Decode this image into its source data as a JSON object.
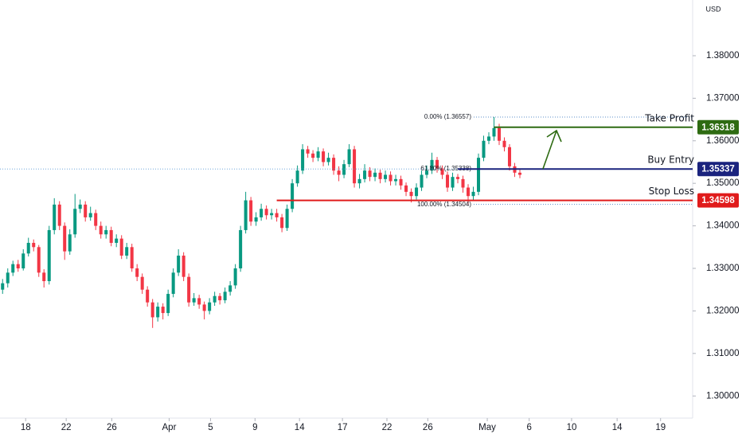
{
  "chart_data": {
    "type": "candlestick",
    "currency": "USD",
    "up_color": "#089981",
    "down_color": "#f23645",
    "grid": false,
    "ylim": [
      1.2948,
      1.3931
    ],
    "yticks": [
      {
        "value": 1.38,
        "label": "1.38000"
      },
      {
        "value": 1.37,
        "label": "1.37000"
      },
      {
        "value": 1.36,
        "label": "1.36000"
      },
      {
        "value": 1.35,
        "label": "1.35000"
      },
      {
        "value": 1.34,
        "label": "1.34000"
      },
      {
        "value": 1.33,
        "label": "1.33000"
      },
      {
        "value": 1.32,
        "label": "1.32000"
      },
      {
        "value": 1.31,
        "label": "1.31000"
      },
      {
        "value": 1.3,
        "label": "1.30000"
      }
    ],
    "xlim": [
      -0.5,
      133.4
    ],
    "xticks": [
      {
        "value": 4.46,
        "label": "18"
      },
      {
        "value": 12.3,
        "label": "22"
      },
      {
        "value": 21.1,
        "label": "26"
      },
      {
        "value": 32.2,
        "label": "Apr"
      },
      {
        "value": 40.2,
        "label": "5"
      },
      {
        "value": 48.8,
        "label": "9"
      },
      {
        "value": 57.4,
        "label": "14"
      },
      {
        "value": 65.7,
        "label": "17"
      },
      {
        "value": 74.3,
        "label": "22"
      },
      {
        "value": 82.2,
        "label": "26"
      },
      {
        "value": 93.7,
        "label": "May"
      },
      {
        "value": 101.8,
        "label": "6"
      },
      {
        "value": 110,
        "label": "10"
      },
      {
        "value": 118.8,
        "label": "14"
      },
      {
        "value": 127.2,
        "label": "19"
      }
    ],
    "candles": [
      [
        1.325,
        1.3275,
        1.324,
        1.3265
      ],
      [
        1.3265,
        1.33,
        1.3255,
        1.329
      ],
      [
        1.329,
        1.3318,
        1.3282,
        1.331
      ],
      [
        1.331,
        1.332,
        1.3292,
        1.33
      ],
      [
        1.33,
        1.3345,
        1.3295,
        1.3335
      ],
      [
        1.3335,
        1.3372,
        1.3328,
        1.336
      ],
      [
        1.336,
        1.3368,
        1.334,
        1.335
      ],
      [
        1.335,
        1.3355,
        1.328,
        1.329
      ],
      [
        1.329,
        1.3298,
        1.3255,
        1.327
      ],
      [
        1.327,
        1.34,
        1.3262,
        1.339
      ],
      [
        1.339,
        1.3465,
        1.338,
        1.345
      ],
      [
        1.345,
        1.3458,
        1.339,
        1.34
      ],
      [
        1.34,
        1.3408,
        1.332,
        1.334
      ],
      [
        1.334,
        1.3392,
        1.3332,
        1.338
      ],
      [
        1.338,
        1.3475,
        1.3372,
        1.344
      ],
      [
        1.344,
        1.3462,
        1.343,
        1.345
      ],
      [
        1.345,
        1.3458,
        1.341,
        1.342
      ],
      [
        1.342,
        1.3445,
        1.3412,
        1.343
      ],
      [
        1.343,
        1.3438,
        1.339,
        1.34
      ],
      [
        1.34,
        1.341,
        1.337,
        1.338
      ],
      [
        1.338,
        1.34,
        1.337,
        1.339
      ],
      [
        1.339,
        1.3398,
        1.3352,
        1.336
      ],
      [
        1.336,
        1.338,
        1.335,
        1.337
      ],
      [
        1.337,
        1.3378,
        1.3322,
        1.333
      ],
      [
        1.333,
        1.336,
        1.3322,
        1.335
      ],
      [
        1.335,
        1.3358,
        1.3292,
        1.33
      ],
      [
        1.33,
        1.331,
        1.327,
        1.328
      ],
      [
        1.328,
        1.3288,
        1.324,
        1.325
      ],
      [
        1.325,
        1.3258,
        1.321,
        1.322
      ],
      [
        1.322,
        1.3228,
        1.316,
        1.3185
      ],
      [
        1.3185,
        1.322,
        1.3175,
        1.321
      ],
      [
        1.321,
        1.3218,
        1.318,
        1.3195
      ],
      [
        1.3195,
        1.325,
        1.3188,
        1.324
      ],
      [
        1.324,
        1.33,
        1.3232,
        1.329
      ],
      [
        1.329,
        1.3345,
        1.3282,
        1.333
      ],
      [
        1.333,
        1.3338,
        1.327,
        1.328
      ],
      [
        1.328,
        1.3288,
        1.321,
        1.322
      ],
      [
        1.322,
        1.3242,
        1.3212,
        1.323
      ],
      [
        1.323,
        1.3238,
        1.3205,
        1.3215
      ],
      [
        1.3215,
        1.3222,
        1.318,
        1.32
      ],
      [
        1.32,
        1.323,
        1.3192,
        1.322
      ],
      [
        1.322,
        1.3245,
        1.3212,
        1.3235
      ],
      [
        1.3235,
        1.3242,
        1.3215,
        1.3225
      ],
      [
        1.3225,
        1.3255,
        1.3218,
        1.3245
      ],
      [
        1.3245,
        1.327,
        1.3236,
        1.326
      ],
      [
        1.326,
        1.331,
        1.3252,
        1.33
      ],
      [
        1.33,
        1.34,
        1.3292,
        1.339
      ],
      [
        1.339,
        1.348,
        1.3382,
        1.346
      ],
      [
        1.346,
        1.3468,
        1.34,
        1.341
      ],
      [
        1.341,
        1.3432,
        1.34,
        1.342
      ],
      [
        1.342,
        1.3452,
        1.3412,
        1.344
      ],
      [
        1.344,
        1.3448,
        1.3415,
        1.3425
      ],
      [
        1.3425,
        1.344,
        1.3415,
        1.343
      ],
      [
        1.343,
        1.344,
        1.341,
        1.342
      ],
      [
        1.342,
        1.3428,
        1.3385,
        1.3395
      ],
      [
        1.3395,
        1.345,
        1.3388,
        1.344
      ],
      [
        1.344,
        1.351,
        1.3432,
        1.35
      ],
      [
        1.35,
        1.3542,
        1.3492,
        1.353
      ],
      [
        1.353,
        1.3592,
        1.3522,
        1.358
      ],
      [
        1.358,
        1.3588,
        1.356,
        1.357
      ],
      [
        1.357,
        1.3578,
        1.355,
        1.356
      ],
      [
        1.356,
        1.3585,
        1.3552,
        1.3575
      ],
      [
        1.3575,
        1.3582,
        1.354,
        1.355
      ],
      [
        1.355,
        1.3572,
        1.3542,
        1.356
      ],
      [
        1.356,
        1.3568,
        1.352,
        1.353
      ],
      [
        1.353,
        1.354,
        1.3505,
        1.352
      ],
      [
        1.352,
        1.3555,
        1.3512,
        1.3545
      ],
      [
        1.3545,
        1.3592,
        1.3538,
        1.358
      ],
      [
        1.358,
        1.3588,
        1.349,
        1.35
      ],
      [
        1.35,
        1.3522,
        1.3488,
        1.351
      ],
      [
        1.351,
        1.3545,
        1.3502,
        1.353
      ],
      [
        1.353,
        1.3538,
        1.3505,
        1.3515
      ],
      [
        1.3515,
        1.3535,
        1.3505,
        1.3525
      ],
      [
        1.3525,
        1.3532,
        1.35,
        1.351
      ],
      [
        1.351,
        1.353,
        1.3502,
        1.352
      ],
      [
        1.352,
        1.3528,
        1.3495,
        1.3505
      ],
      [
        1.3505,
        1.352,
        1.3495,
        1.351
      ],
      [
        1.351,
        1.3518,
        1.3485,
        1.3495
      ],
      [
        1.3495,
        1.3502,
        1.347,
        1.348
      ],
      [
        1.348,
        1.3488,
        1.3455,
        1.347
      ],
      [
        1.347,
        1.35,
        1.3462,
        1.349
      ],
      [
        1.349,
        1.353,
        1.3482,
        1.352
      ],
      [
        1.352,
        1.3542,
        1.3512,
        1.353
      ],
      [
        1.353,
        1.3572,
        1.3522,
        1.3555
      ],
      [
        1.3555,
        1.3562,
        1.3525,
        1.3535
      ],
      [
        1.3535,
        1.3542,
        1.351,
        1.352
      ],
      [
        1.352,
        1.3528,
        1.348,
        1.349
      ],
      [
        1.349,
        1.3525,
        1.3482,
        1.3515
      ],
      [
        1.3515,
        1.3522,
        1.35,
        1.351
      ],
      [
        1.351,
        1.3518,
        1.3478,
        1.349
      ],
      [
        1.349,
        1.3498,
        1.345,
        1.347
      ],
      [
        1.347,
        1.3492,
        1.346,
        1.348
      ],
      [
        1.348,
        1.357,
        1.3472,
        1.356
      ],
      [
        1.356,
        1.3612,
        1.3552,
        1.36
      ],
      [
        1.36,
        1.362,
        1.3592,
        1.361
      ],
      [
        1.361,
        1.3656,
        1.36,
        1.363
      ],
      [
        1.363,
        1.364,
        1.359,
        1.36
      ],
      [
        1.36,
        1.3608,
        1.3575,
        1.3585
      ],
      [
        1.3585,
        1.3592,
        1.353,
        1.354
      ],
      [
        1.354,
        1.3548,
        1.3515,
        1.3525
      ],
      [
        1.3525,
        1.3532,
        1.3512,
        1.352
      ]
    ],
    "levels": [
      {
        "name": "Take Profit",
        "value": 1.36318,
        "color": "#2e6b12",
        "from": 95
      },
      {
        "name": "Buy Entry",
        "value": 1.35337,
        "color": "#1a237e",
        "from": 88
      },
      {
        "name": "Stop Loss",
        "value": 1.34598,
        "color": "#e01b1b",
        "from": 53
      }
    ],
    "fib_levels": [
      {
        "value": 1.36557,
        "label": "0.00% (1.36557)",
        "color": "#5b8fc9"
      },
      {
        "value": 1.35338,
        "label": "61.80% (1.35338)",
        "color": "#d4a017"
      },
      {
        "value": 1.34504,
        "label": "100.00% (1.34504)",
        "color": "#5b8fc9"
      }
    ]
  }
}
